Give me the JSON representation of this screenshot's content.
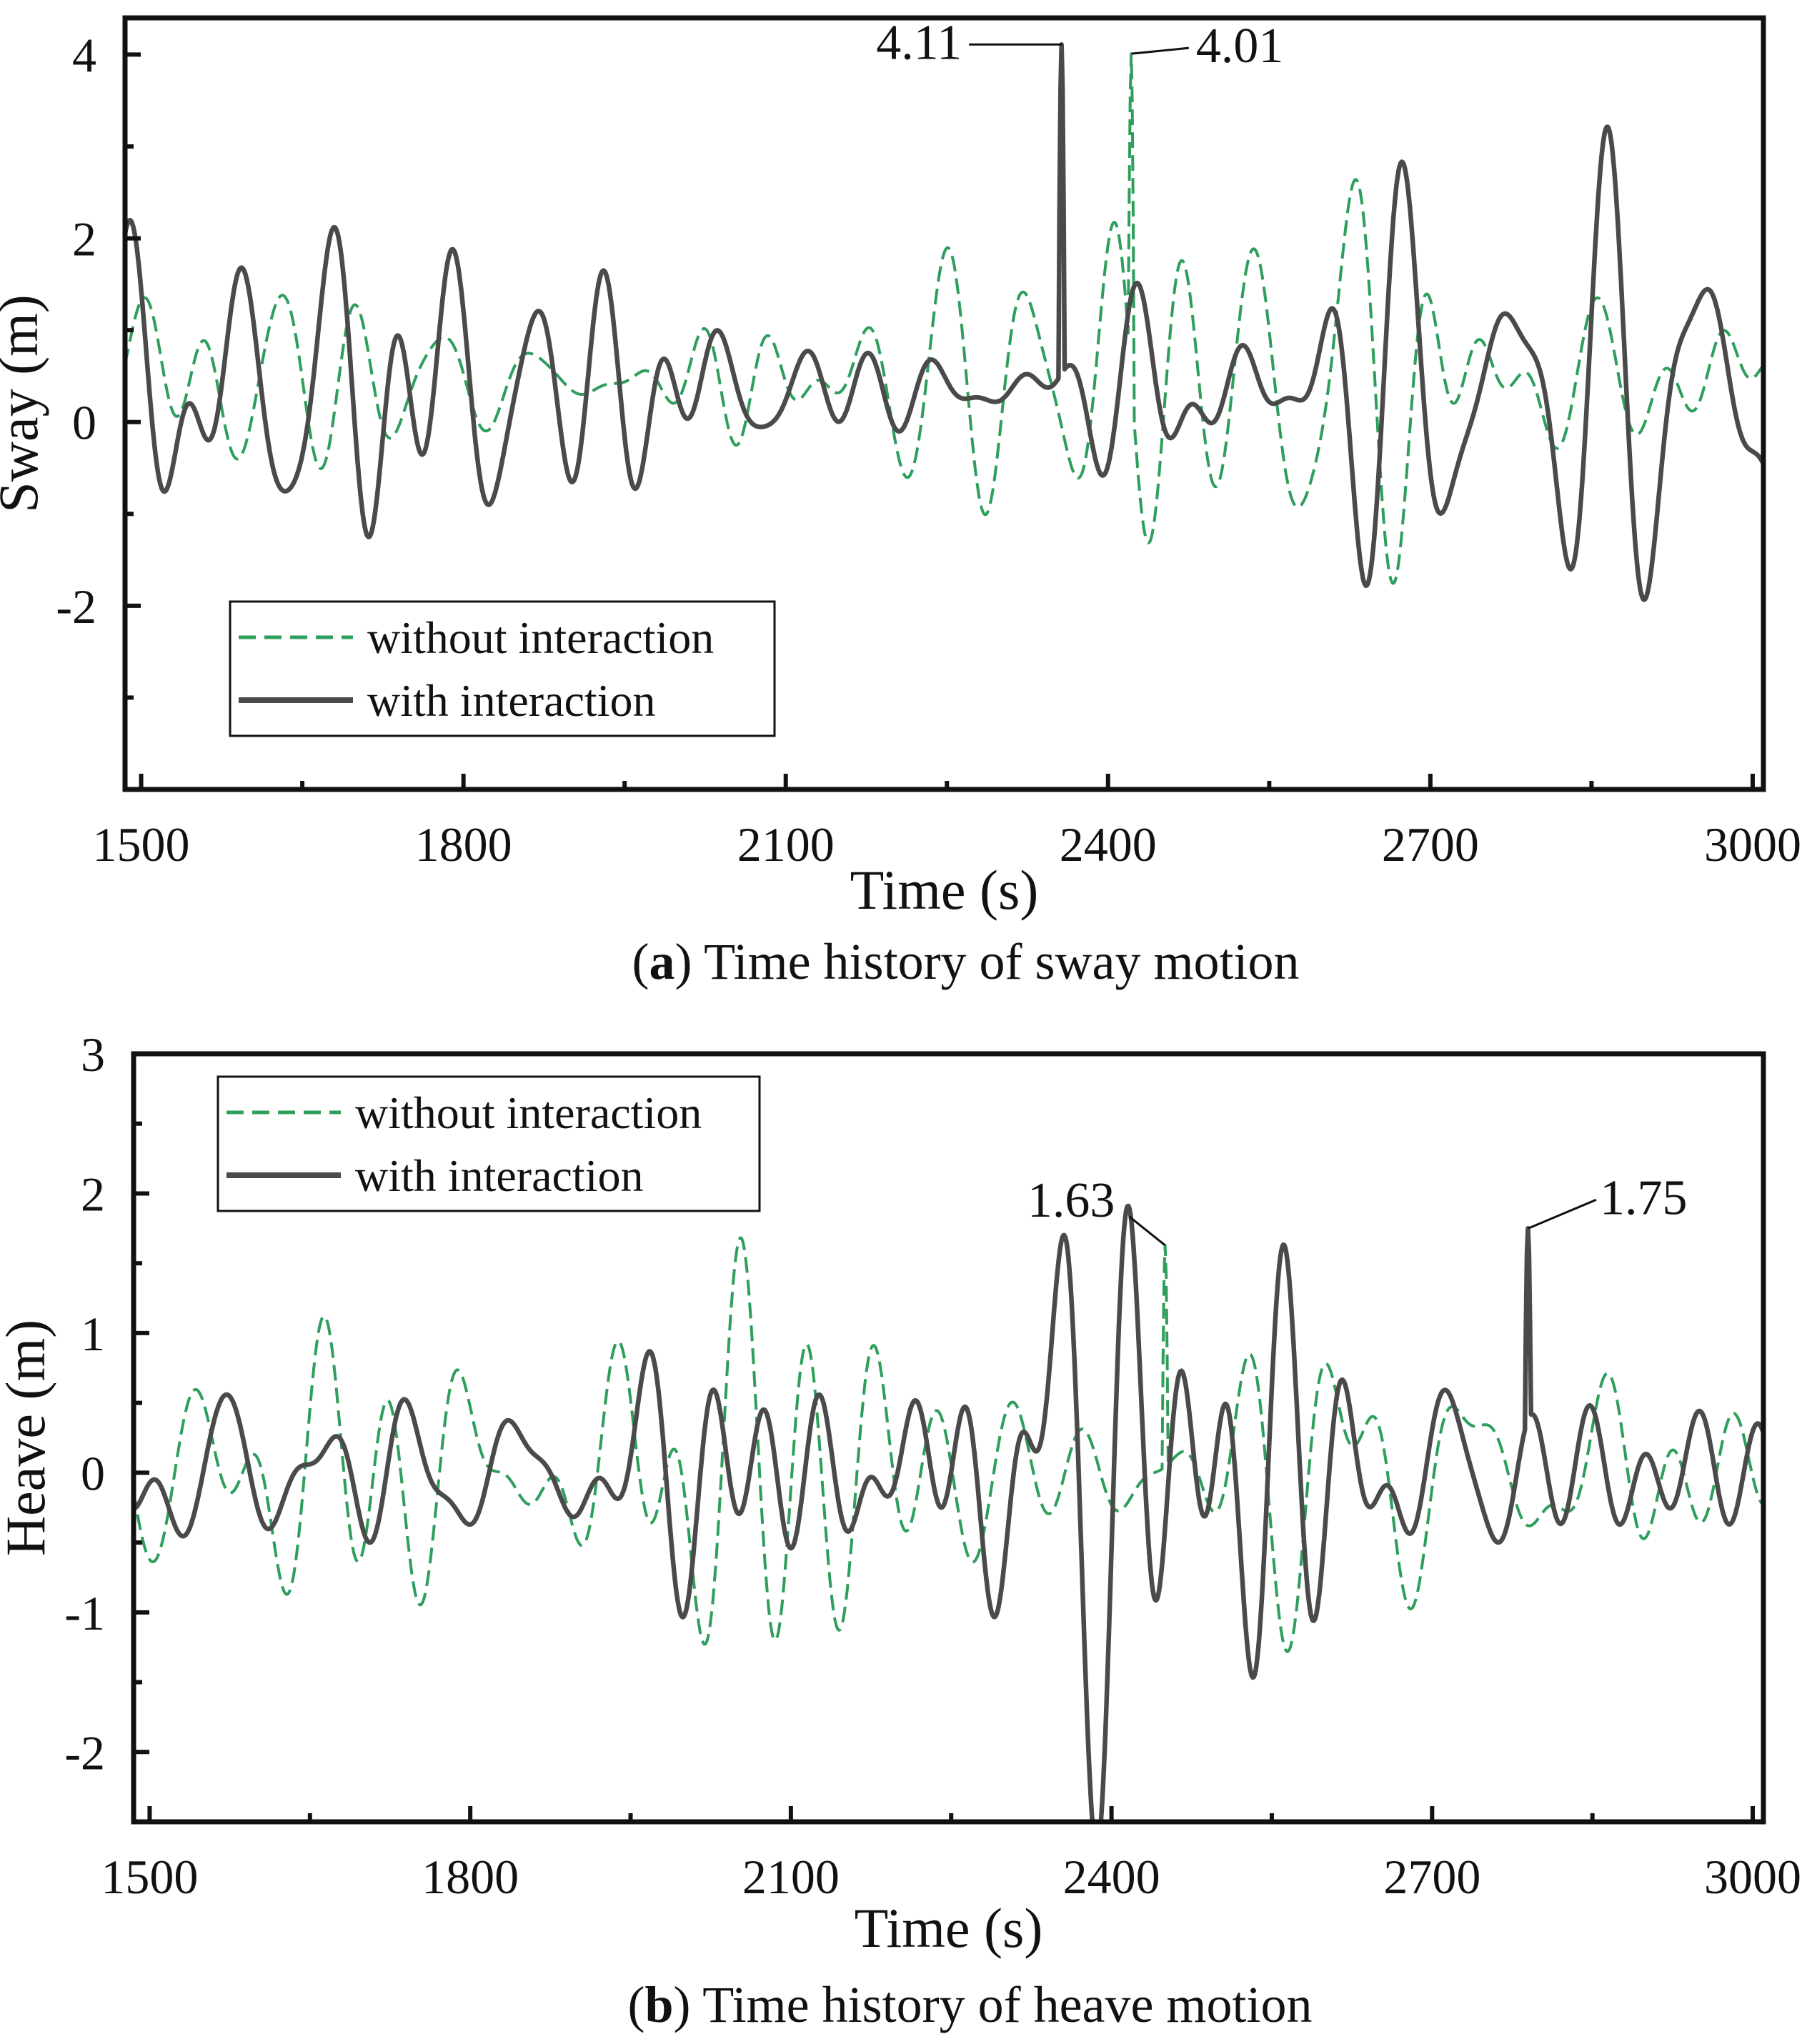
{
  "colors": {
    "without": "#2e9e5b",
    "with": "#4a4a4a",
    "axis": "#111111"
  },
  "chart_data": [
    {
      "type": "line",
      "panel": "a",
      "caption_letter": "a",
      "caption_text": ") Time history of sway motion",
      "caption_open": "(",
      "title": "",
      "xlabel": "Time (s)",
      "ylabel": "Sway (m)",
      "xlim": [
        1485,
        3010
      ],
      "ylim": [
        -4.0,
        4.4
      ],
      "xticks": [
        1500,
        1800,
        2100,
        2400,
        2700,
        3000
      ],
      "xtick_labels": [
        "1500",
        "1800",
        "2100",
        "2400",
        "2700",
        "3000"
      ],
      "yticks": [
        -2,
        0,
        2,
        4
      ],
      "ytick_labels": [
        "-2",
        "0",
        "2",
        "4"
      ],
      "legend": {
        "position": "lower-left",
        "entries": [
          "without interaction",
          "with interaction"
        ]
      },
      "series": [
        {
          "name": "without interaction",
          "style": "dashed",
          "amplitude": 1.35,
          "offset": 0.45,
          "seed": 11
        },
        {
          "name": "with interaction",
          "style": "solid",
          "amplitude": 1.5,
          "offset": 0.35,
          "seed": 29
        }
      ],
      "annotations": [
        {
          "label": "4.11",
          "x": 2357,
          "y": 4.11,
          "series": "with interaction",
          "side": "left"
        },
        {
          "label": "4.01",
          "x": 2422,
          "y": 4.01,
          "series": "without interaction",
          "side": "right"
        }
      ]
    },
    {
      "type": "line",
      "panel": "b",
      "caption_letter": "b",
      "caption_text": ") Time history of heave motion",
      "caption_open": "(",
      "title": "",
      "xlabel": "Time (s)",
      "ylabel": "Heave (m)",
      "xlim": [
        1485,
        3010
      ],
      "ylim": [
        -2.5,
        3.0
      ],
      "xticks": [
        1500,
        1800,
        2100,
        2400,
        2700,
        3000
      ],
      "xtick_labels": [
        "1500",
        "1800",
        "2100",
        "2400",
        "2700",
        "3000"
      ],
      "yticks": [
        -2,
        -1,
        0,
        1,
        2,
        3
      ],
      "ytick_labels": [
        "-2",
        "-1",
        "0",
        "1",
        "2",
        "3"
      ],
      "legend": {
        "position": "top-left",
        "entries": [
          "without interaction",
          "with interaction"
        ]
      },
      "series": [
        {
          "name": "without interaction",
          "style": "dashed",
          "amplitude": 0.85,
          "offset": 0.0,
          "seed": 47
        },
        {
          "name": "with interaction",
          "style": "solid",
          "amplitude": 0.95,
          "offset": 0.0,
          "seed": 83
        }
      ],
      "annotations": [
        {
          "label": "1.63",
          "x": 2450,
          "y": 1.63,
          "series": "without interaction",
          "side": "left"
        },
        {
          "label": "1.75",
          "x": 2790,
          "y": 1.75,
          "series": "with interaction",
          "side": "right"
        }
      ]
    }
  ]
}
